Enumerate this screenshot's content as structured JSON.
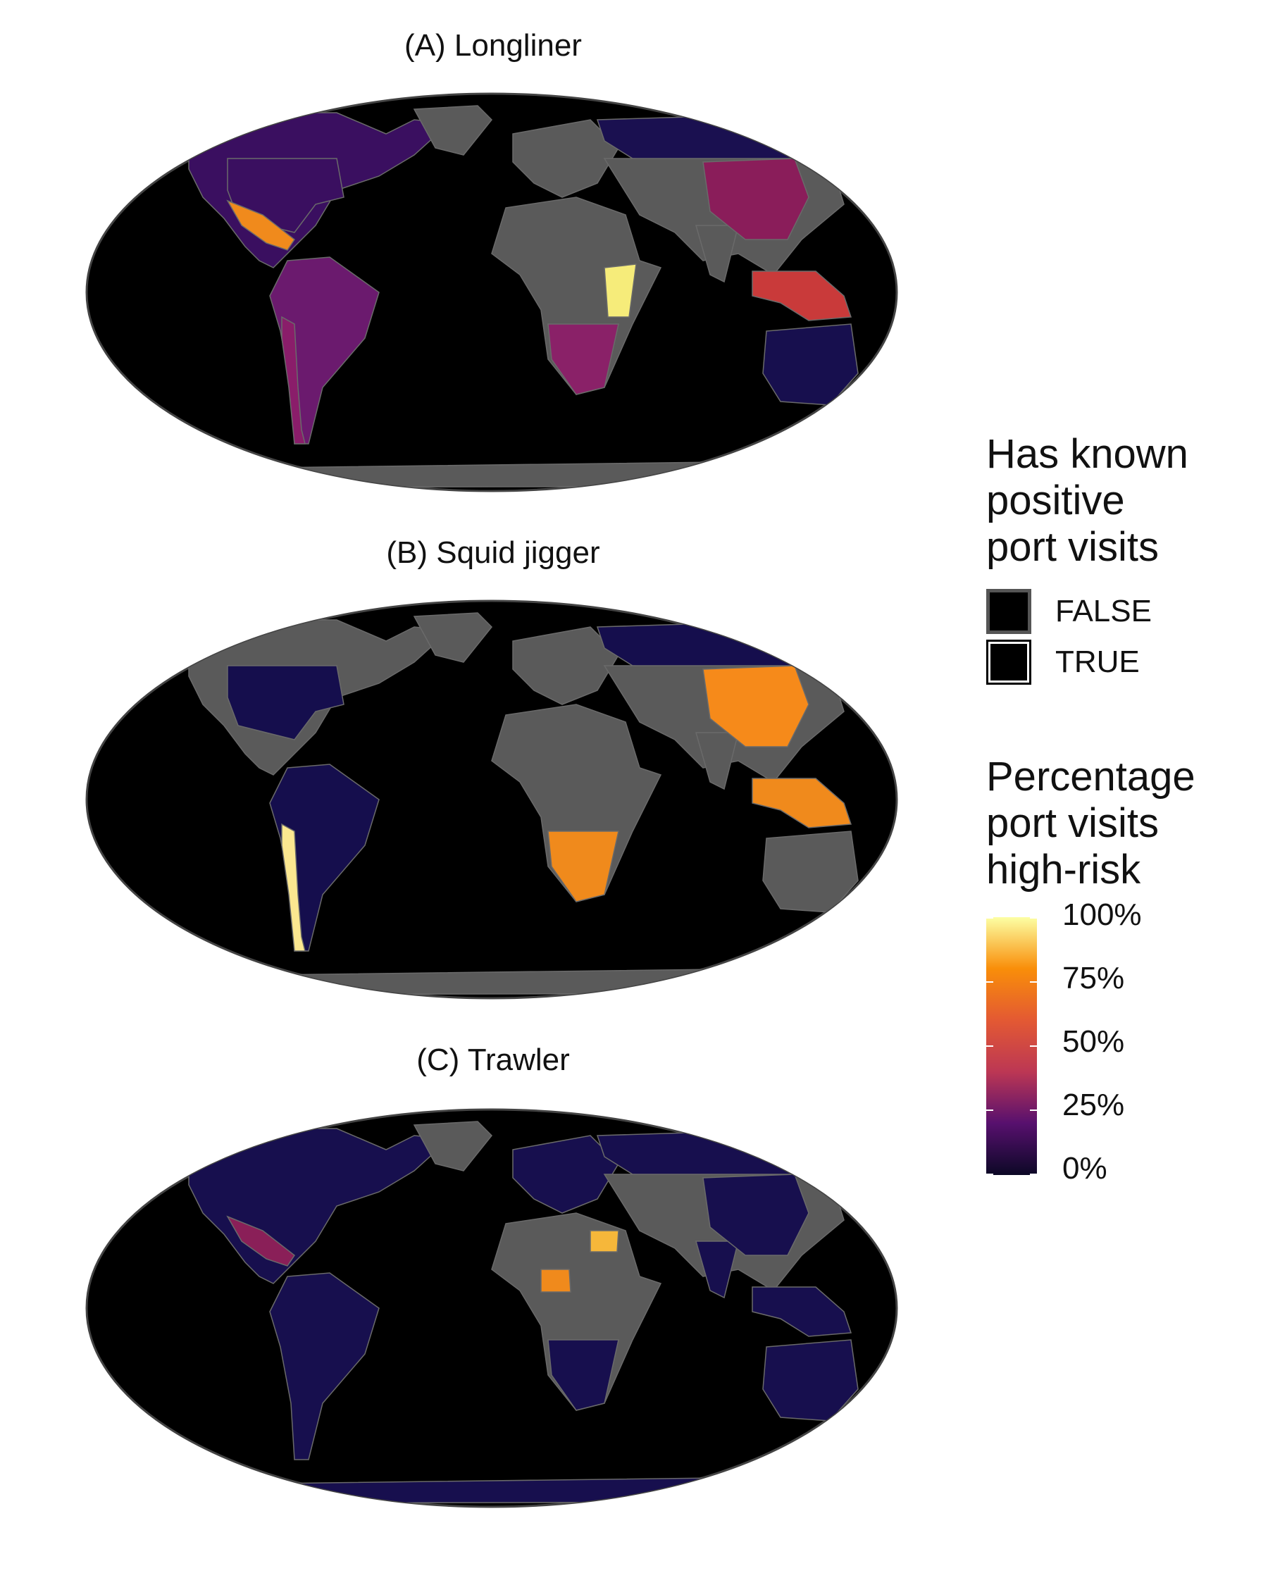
{
  "panels": [
    {
      "title": "(A) Longliner"
    },
    {
      "title": "(B) Squid jigger"
    },
    {
      "title": "(C) Trawler"
    }
  ],
  "legend_positive": {
    "title_lines": [
      "Has known",
      "positive",
      "port visits"
    ],
    "items": [
      {
        "label": "FALSE",
        "border": "#555555"
      },
      {
        "label": "TRUE",
        "border": "#ffffff"
      }
    ]
  },
  "legend_percent": {
    "title_lines": [
      "Percentage",
      "port visits",
      "high-risk"
    ],
    "ticks": [
      "100%",
      "75%",
      "50%",
      "25%",
      "0%"
    ],
    "colors": [
      "#fcffa4",
      "#f98e09",
      "#e35933",
      "#bc3754",
      "#57106e",
      "#0c0826"
    ]
  },
  "colors": {
    "ocean": "#000000",
    "no_data_land": "#5a5a5a",
    "longliner": {
      "americas": "#3a0f60",
      "us": "#3a0f60",
      "mexico": "#f08a1c",
      "southamerica": "#6b1a6e",
      "chile": "#8a1d6a",
      "africa_south": "#8a2168",
      "east_africa": "#f6ec7a",
      "china": "#8a1d5a",
      "russia": "#1a1050",
      "seasia": "#c93a3a",
      "australia": "#170f4e"
    },
    "squid": {
      "china": "#f68a1a",
      "chile": "#fbe790",
      "southafrica": "#f08a1c",
      "seasia": "#f08a1c",
      "us": "#150e4d",
      "russia": "#150e4d",
      "brazil": "#150e4d"
    },
    "trawler": {
      "mexico": "#8a1f58",
      "egypt": "#f6b73a",
      "nigeria": "#f08a1c",
      "default": "#170f4e"
    }
  }
}
